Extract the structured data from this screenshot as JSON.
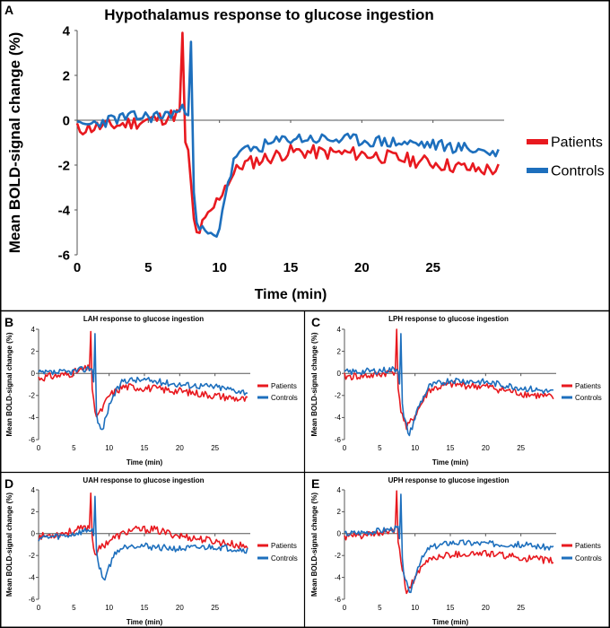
{
  "colors": {
    "patients": "#e8191f",
    "controls": "#1d6fbd",
    "frame": "#000000",
    "axis": "#555555"
  },
  "chart_data": [
    {
      "id": "A",
      "panel_letter": "A",
      "type": "line",
      "title": "Hypothalamus response to glucose ingestion",
      "xlabel": "Time (min)",
      "ylabel": "Mean BOLD-signal change (%)",
      "xlim": [
        0,
        30
      ],
      "ylim": [
        -6,
        4
      ],
      "x_ticks": [
        0,
        5,
        10,
        15,
        20,
        25
      ],
      "y_ticks": [
        4,
        2,
        0,
        -2,
        -4,
        -6
      ],
      "legend_position": "right",
      "series": [
        {
          "name": "Patients",
          "color": "#e8191f",
          "seed": 11,
          "noise": 0.32,
          "spike": 3.9,
          "keypoints": [
            [
              0,
              -0.4
            ],
            [
              3,
              -0.2
            ],
            [
              6,
              0.1
            ],
            [
              7.2,
              0.3
            ],
            [
              7.8,
              -1.5
            ],
            [
              8.3,
              -5.2
            ],
            [
              9.5,
              -4.0
            ],
            [
              10.5,
              -2.8
            ],
            [
              11.5,
              -2.0
            ],
            [
              15,
              -1.4
            ],
            [
              20,
              -1.5
            ],
            [
              25,
              -1.9
            ],
            [
              28,
              -2.2
            ],
            [
              29.5,
              -2.2
            ]
          ]
        },
        {
          "name": "Controls",
          "color": "#1d6fbd",
          "seed": 23,
          "noise": 0.28,
          "spike": 3.5,
          "keypoints": [
            [
              0,
              -0.3
            ],
            [
              3,
              0.1
            ],
            [
              6,
              0.2
            ],
            [
              7.8,
              0.5
            ],
            [
              8.4,
              -4.8
            ],
            [
              9.8,
              -5.3
            ],
            [
              10.5,
              -3.0
            ],
            [
              11.2,
              -1.5
            ],
            [
              15,
              -0.8
            ],
            [
              20,
              -0.9
            ],
            [
              25,
              -1.1
            ],
            [
              28,
              -1.3
            ],
            [
              29.5,
              -1.5
            ]
          ]
        }
      ]
    },
    {
      "id": "B",
      "panel_letter": "B",
      "type": "line",
      "title": "LAH response to glucose ingestion",
      "xlabel": "Time (min)",
      "ylabel": "Mean BOLD-signal change (%)",
      "xlim": [
        0,
        30
      ],
      "ylim": [
        -6,
        4
      ],
      "x_ticks": [
        0,
        5,
        10,
        15,
        20,
        25
      ],
      "y_ticks": [
        4,
        2,
        0,
        -2,
        -4,
        -6
      ],
      "legend_position": "right",
      "series": [
        {
          "name": "Patients",
          "color": "#e8191f",
          "seed": 31,
          "noise": 0.35,
          "spike": 3.8,
          "keypoints": [
            [
              0,
              -0.4
            ],
            [
              4,
              -0.1
            ],
            [
              7.3,
              0.5
            ],
            [
              8.0,
              -3.8
            ],
            [
              8.8,
              -3.5
            ],
            [
              10,
              -2.0
            ],
            [
              12,
              -1.2
            ],
            [
              15,
              -1.3
            ],
            [
              20,
              -1.6
            ],
            [
              25,
              -2.0
            ],
            [
              29.5,
              -2.4
            ]
          ]
        },
        {
          "name": "Controls",
          "color": "#1d6fbd",
          "seed": 37,
          "noise": 0.3,
          "spike": 3.6,
          "keypoints": [
            [
              0,
              0
            ],
            [
              4,
              0.1
            ],
            [
              7.6,
              0.5
            ],
            [
              8.4,
              -4.5
            ],
            [
              9.0,
              -5.2
            ],
            [
              10.2,
              -2.5
            ],
            [
              12,
              -0.6
            ],
            [
              15,
              -0.6
            ],
            [
              20,
              -1.0
            ],
            [
              25,
              -1.2
            ],
            [
              29.5,
              -1.7
            ]
          ]
        }
      ]
    },
    {
      "id": "C",
      "panel_letter": "C",
      "type": "line",
      "title": "LPH response to glucose ingestion",
      "xlabel": "Time (min)",
      "ylabel": "Mean BOLD-signal change (%)",
      "xlim": [
        0,
        30
      ],
      "ylim": [
        -6,
        4
      ],
      "x_ticks": [
        0,
        5,
        10,
        15,
        20,
        25
      ],
      "y_ticks": [
        4,
        2,
        0,
        -2,
        -4,
        -6
      ],
      "legend_position": "right",
      "series": [
        {
          "name": "Patients",
          "color": "#e8191f",
          "seed": 41,
          "noise": 0.35,
          "spike": 4.0,
          "keypoints": [
            [
              0,
              -0.3
            ],
            [
              4,
              -0.2
            ],
            [
              7.2,
              0.2
            ],
            [
              7.9,
              -3.0
            ],
            [
              8.8,
              -5.0
            ],
            [
              10,
              -3.8
            ],
            [
              12,
              -1.5
            ],
            [
              15,
              -1.0
            ],
            [
              20,
              -1.2
            ],
            [
              25,
              -1.8
            ],
            [
              29.5,
              -2.2
            ]
          ]
        },
        {
          "name": "Controls",
          "color": "#1d6fbd",
          "seed": 43,
          "noise": 0.3,
          "spike": 3.6,
          "keypoints": [
            [
              0,
              0.1
            ],
            [
              4,
              0.2
            ],
            [
              7.6,
              0.4
            ],
            [
              8.4,
              -4.0
            ],
            [
              9.2,
              -5.6
            ],
            [
              10.5,
              -3.0
            ],
            [
              12,
              -1.2
            ],
            [
              15,
              -0.6
            ],
            [
              20,
              -0.8
            ],
            [
              25,
              -1.3
            ],
            [
              29.5,
              -1.7
            ]
          ]
        }
      ]
    },
    {
      "id": "D",
      "panel_letter": "D",
      "type": "line",
      "title": "UAH response to glucose ingestion",
      "xlabel": "Time (min)",
      "ylabel": "Mean BOLD-signal change (%)",
      "xlim": [
        0,
        30
      ],
      "ylim": [
        -6,
        4
      ],
      "x_ticks": [
        0,
        5,
        10,
        15,
        20,
        25
      ],
      "y_ticks": [
        4,
        2,
        0,
        -2,
        -4,
        -6
      ],
      "legend_position": "right",
      "series": [
        {
          "name": "Patients",
          "color": "#e8191f",
          "seed": 53,
          "noise": 0.35,
          "spike": 3.7,
          "keypoints": [
            [
              0,
              -0.3
            ],
            [
              4,
              0.1
            ],
            [
              7.3,
              0.6
            ],
            [
              8.0,
              -1.8
            ],
            [
              9,
              -1.2
            ],
            [
              10,
              -0.6
            ],
            [
              13,
              0.3
            ],
            [
              16,
              0.4
            ],
            [
              20,
              -0.2
            ],
            [
              25,
              -0.7
            ],
            [
              29.5,
              -1.2
            ]
          ]
        },
        {
          "name": "Controls",
          "color": "#1d6fbd",
          "seed": 59,
          "noise": 0.3,
          "spike": 3.4,
          "keypoints": [
            [
              0,
              -0.4
            ],
            [
              4,
              -0.2
            ],
            [
              7.6,
              0.4
            ],
            [
              8.4,
              -2.5
            ],
            [
              9.2,
              -4.3
            ],
            [
              10,
              -3.0
            ],
            [
              11,
              -1.6
            ],
            [
              13,
              -1.0
            ],
            [
              16,
              -1.2
            ],
            [
              20,
              -1.4
            ],
            [
              25,
              -1.2
            ],
            [
              29.5,
              -1.5
            ]
          ]
        }
      ]
    },
    {
      "id": "E",
      "panel_letter": "E",
      "type": "line",
      "title": "UPH response to glucose ingestion",
      "xlabel": "Time (min)",
      "ylabel": "Mean BOLD-signal change (%)",
      "xlim": [
        0,
        30
      ],
      "ylim": [
        -6,
        4
      ],
      "x_ticks": [
        0,
        5,
        10,
        15,
        20,
        25
      ],
      "y_ticks": [
        4,
        2,
        0,
        -2,
        -4,
        -6
      ],
      "legend_position": "right",
      "series": [
        {
          "name": "Patients",
          "color": "#e8191f",
          "seed": 61,
          "noise": 0.32,
          "spike": 3.9,
          "keypoints": [
            [
              0,
              -0.3
            ],
            [
              4,
              -0.1
            ],
            [
              7.2,
              0.3
            ],
            [
              7.9,
              -2.0
            ],
            [
              8.8,
              -5.4
            ],
            [
              10,
              -4.0
            ],
            [
              12,
              -2.3
            ],
            [
              15,
              -1.9
            ],
            [
              20,
              -1.8
            ],
            [
              25,
              -2.2
            ],
            [
              29.5,
              -2.5
            ]
          ]
        },
        {
          "name": "Controls",
          "color": "#1d6fbd",
          "seed": 67,
          "noise": 0.28,
          "spike": 3.6,
          "keypoints": [
            [
              0,
              0
            ],
            [
              4,
              0.2
            ],
            [
              7.6,
              0.5
            ],
            [
              8.4,
              -3.5
            ],
            [
              9.2,
              -5.6
            ],
            [
              10.5,
              -2.8
            ],
            [
              12,
              -1.3
            ],
            [
              15,
              -0.8
            ],
            [
              20,
              -0.9
            ],
            [
              25,
              -1.0
            ],
            [
              29.5,
              -1.3
            ]
          ]
        }
      ]
    }
  ]
}
